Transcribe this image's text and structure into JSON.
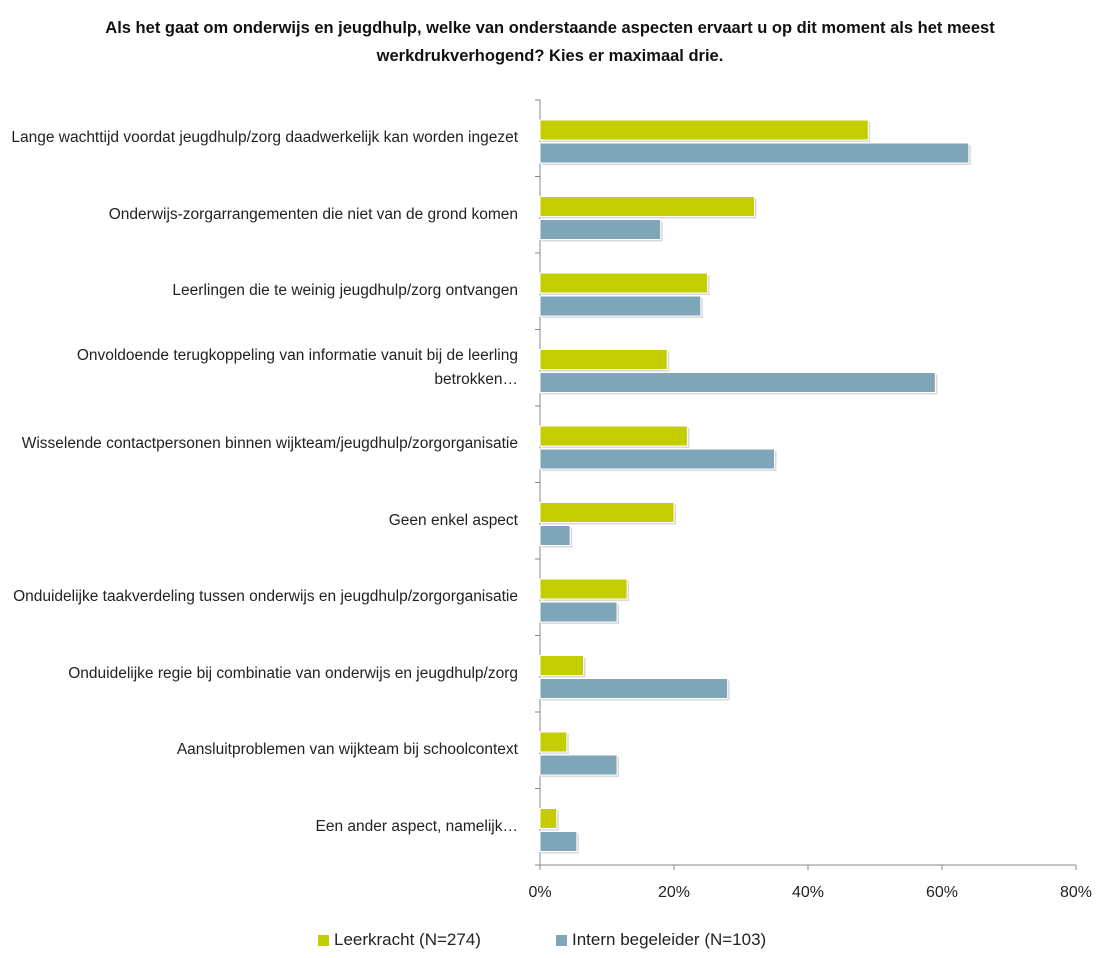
{
  "chart_data": {
    "type": "bar",
    "orientation": "horizontal",
    "title": "Als het gaat om onderwijs en jeugdhulp, welke van onderstaande aspecten ervaart u op dit moment als het meest werkdrukverhogend? Kies er maximaal drie.",
    "categories": [
      "Lange wachttijd voordat jeugdhulp/zorg daadwerkelijk kan worden ingezet",
      "Onderwijs-zorgarrangementen die niet van de grond komen",
      "Leerlingen die te weinig jeugdhulp/zorg ontvangen",
      "Onvoldoende terugkoppeling van informatie vanuit bij de leerling betrokken…",
      "Wisselende contactpersonen binnen wijkteam/jeugdhulp/zorgorganisatie",
      "Geen enkel aspect",
      "Onduidelijke taakverdeling tussen onderwijs en jeugdhulp/zorgorganisatie",
      "Onduidelijke regie bij combinatie van onderwijs en jeugdhulp/zorg",
      "Aansluitproblemen van wijkteam bij schoolcontext",
      "Een ander aspect, namelijk…"
    ],
    "series": [
      {
        "name": "Leerkracht (N=274)",
        "color": "#c3cd00",
        "values": [
          49,
          32,
          25,
          19,
          22,
          20,
          13,
          6.5,
          4,
          2.5
        ]
      },
      {
        "name": "Intern begeleider (N=103)",
        "color": "#7fa5b8",
        "values": [
          64,
          18,
          24,
          59,
          35,
          4.5,
          11.5,
          28,
          11.5,
          5.5
        ]
      }
    ],
    "xlim": [
      0,
      80
    ],
    "xticks": [
      {
        "value": 0,
        "label": "0%"
      },
      {
        "value": 20,
        "label": "20%"
      },
      {
        "value": 40,
        "label": "40%"
      },
      {
        "value": 60,
        "label": "60%"
      },
      {
        "value": 80,
        "label": "80%"
      }
    ],
    "legend": "bottom"
  }
}
